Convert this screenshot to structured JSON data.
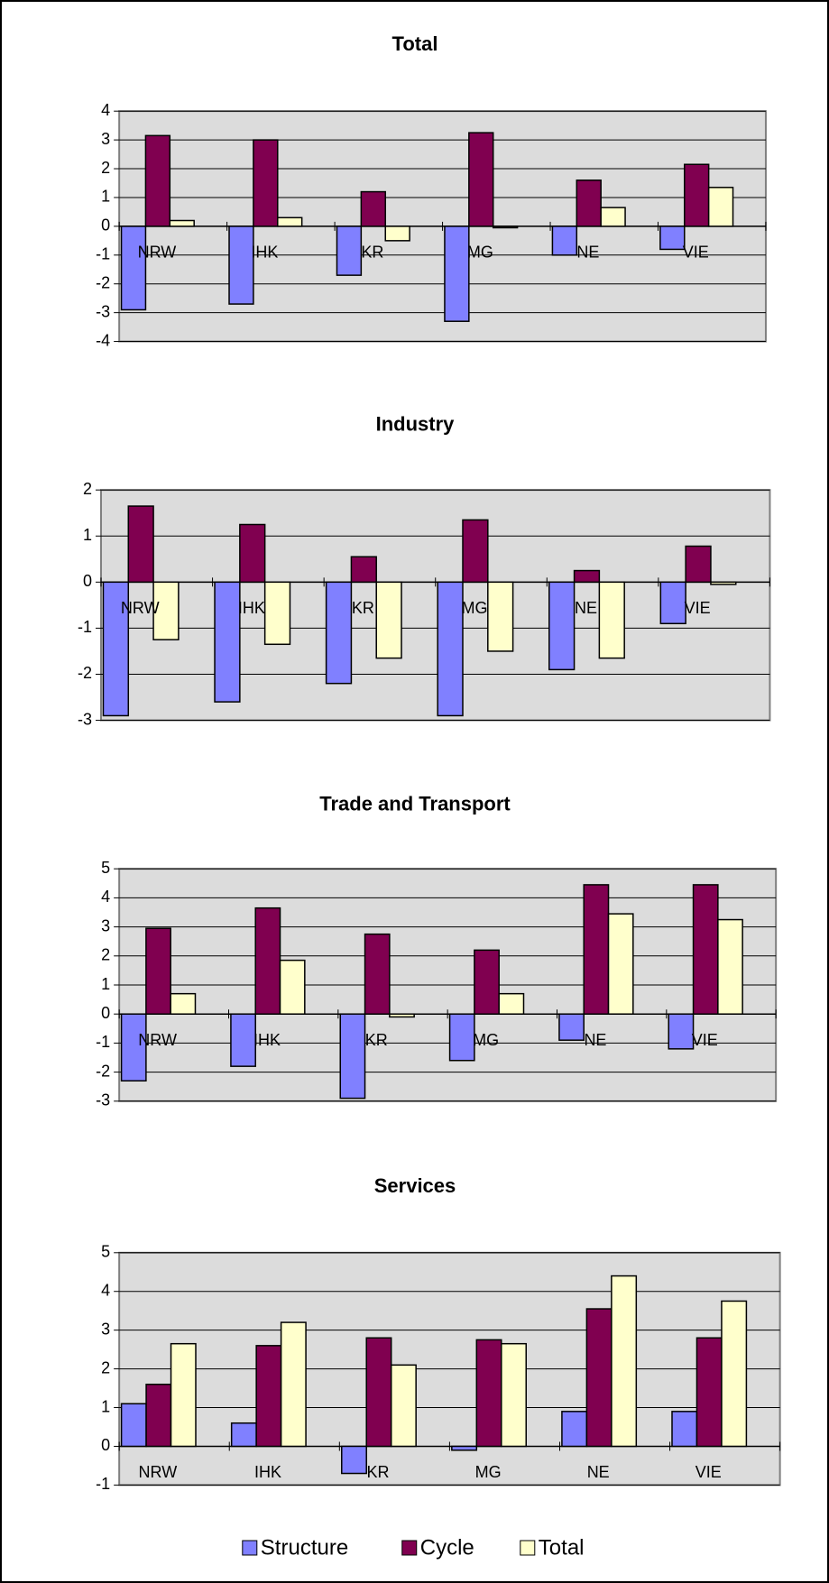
{
  "chart_data": [
    {
      "type": "bar",
      "title": "Total",
      "categories": [
        "NRW",
        "IHK",
        "KR",
        "MG",
        "NE",
        "VIE"
      ],
      "series": [
        {
          "values": [
            -2.9,
            -2.7,
            -1.7,
            -3.3,
            -1.0,
            -0.8
          ]
        },
        {
          "values": [
            3.15,
            3.0,
            1.2,
            3.25,
            1.6,
            2.15
          ]
        },
        {
          "values": [
            0.2,
            0.3,
            -0.5,
            -0.05,
            0.65,
            1.35
          ]
        }
      ],
      "ylim": [
        -4,
        4
      ],
      "yticks": [
        -4,
        -3,
        -2,
        -1,
        0,
        1,
        2,
        3,
        4
      ],
      "grid": true
    },
    {
      "type": "bar",
      "title": "Industry",
      "categories": [
        "NRW",
        "IHK",
        "KR",
        "MG",
        "NE",
        "VIE"
      ],
      "series": [
        {
          "values": [
            -2.9,
            -2.6,
            -2.2,
            -2.9,
            -1.9,
            -0.9
          ]
        },
        {
          "values": [
            1.65,
            1.25,
            0.55,
            1.35,
            0.25,
            0.78
          ]
        },
        {
          "values": [
            -1.25,
            -1.35,
            -1.65,
            -1.5,
            -1.65,
            -0.05
          ]
        }
      ],
      "ylim": [
        -3,
        2
      ],
      "yticks": [
        -3,
        -2,
        -1,
        0,
        1,
        2
      ],
      "grid": true
    },
    {
      "type": "bar",
      "title": "Trade and Transport",
      "categories": [
        "NRW",
        "IHK",
        "KR",
        "MG",
        "NE",
        "VIE"
      ],
      "series": [
        {
          "values": [
            -2.3,
            -1.8,
            -2.9,
            -1.6,
            -0.9,
            -1.2
          ]
        },
        {
          "values": [
            2.95,
            3.65,
            2.75,
            2.2,
            4.45,
            4.45
          ]
        },
        {
          "values": [
            0.7,
            1.85,
            -0.1,
            0.7,
            3.45,
            3.25
          ]
        }
      ],
      "ylim": [
        -3,
        5
      ],
      "yticks": [
        -3,
        -2,
        -1,
        0,
        1,
        2,
        3,
        4,
        5
      ],
      "grid": true
    },
    {
      "type": "bar",
      "title": "Services",
      "categories": [
        "NRW",
        "IHK",
        "KR",
        "MG",
        "NE",
        "VIE"
      ],
      "series": [
        {
          "values": [
            1.1,
            0.6,
            -0.7,
            -0.1,
            0.9,
            0.9
          ]
        },
        {
          "values": [
            1.6,
            2.6,
            2.8,
            2.75,
            3.55,
            2.8
          ]
        },
        {
          "values": [
            2.65,
            3.2,
            2.1,
            2.65,
            4.4,
            3.75
          ]
        }
      ],
      "ylim": [
        -1,
        5
      ],
      "yticks": [
        -1,
        0,
        1,
        2,
        3,
        4,
        5
      ],
      "grid": true
    }
  ],
  "legend": {
    "items": [
      {
        "name": "Structure",
        "color": "#8080ff"
      },
      {
        "name": "Cycle",
        "color": "#800050"
      },
      {
        "name": "Total",
        "color": "#ffffcc"
      }
    ]
  }
}
